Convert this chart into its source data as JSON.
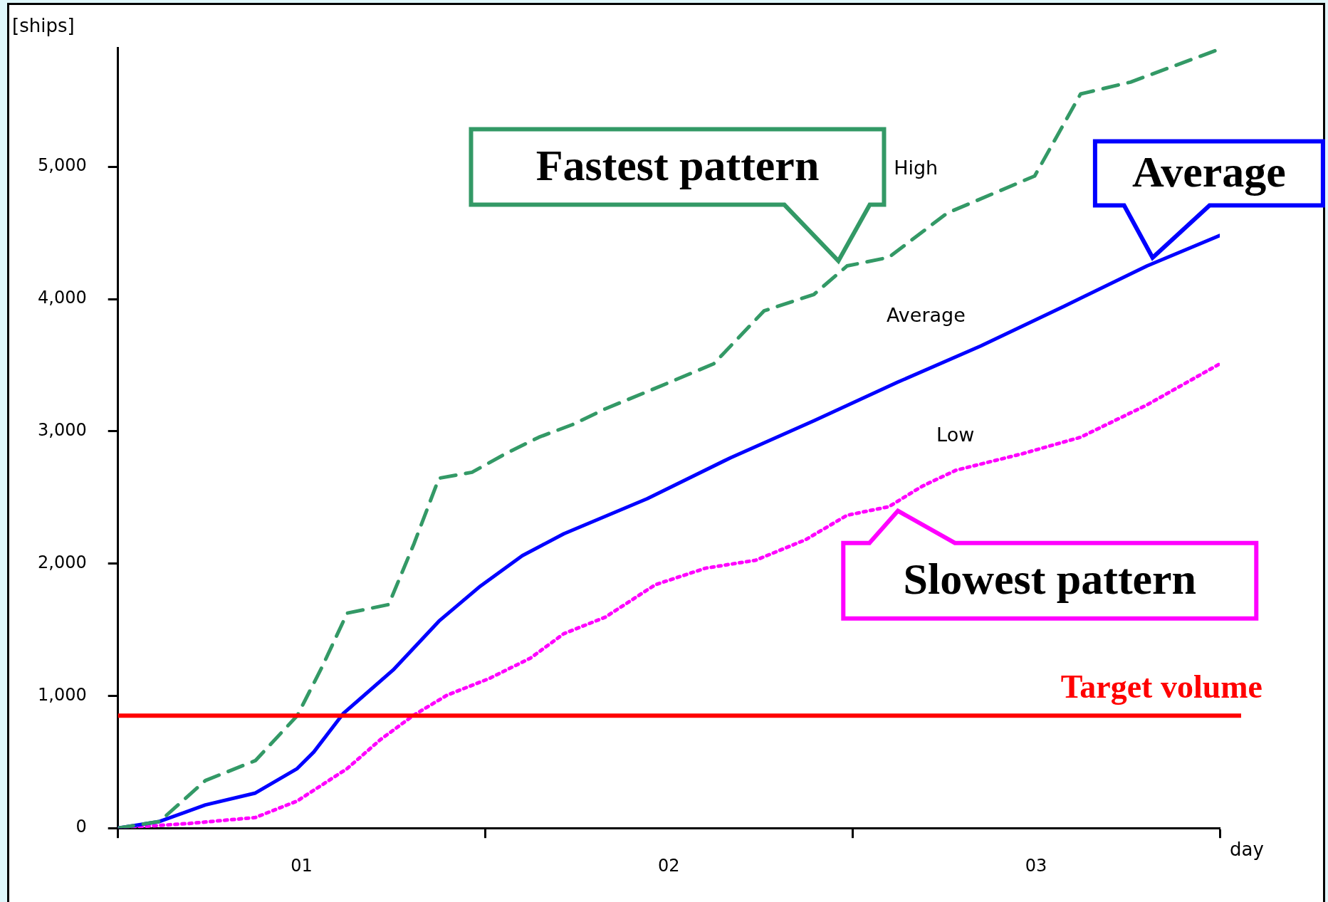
{
  "chart_data": {
    "type": "line",
    "xlabel": "day",
    "ylabel": "[ships]",
    "xlim": [
      0,
      3
    ],
    "ylim": [
      0,
      5900
    ],
    "xticks": [
      {
        "value": 0,
        "label": null
      },
      {
        "value": 0.5,
        "label": "01"
      },
      {
        "value": 1,
        "label": null
      },
      {
        "value": 1.5,
        "label": "02"
      },
      {
        "value": 2,
        "label": null
      },
      {
        "value": 2.5,
        "label": "03"
      },
      {
        "value": 3,
        "label": null
      }
    ],
    "yticks": [
      0,
      {
        "value": 1000,
        "label": "1,000"
      },
      {
        "value": 2000,
        "label": "2,000"
      },
      {
        "value": 3000,
        "label": "3,000"
      },
      {
        "value": 4000,
        "label": "4,000"
      },
      {
        "value": 5000,
        "label": "5,000"
      }
    ],
    "grid": false,
    "legend": false,
    "marker": "none",
    "series": [
      {
        "name": "High",
        "color": "#339966",
        "line_style": "dashed",
        "x": [
          0,
          0.113,
          0.238,
          0.374,
          0.488,
          0.556,
          0.624,
          0.737,
          0.806,
          0.874,
          0.964,
          1.055,
          1.146,
          1.237,
          1.327,
          1.463,
          1.622,
          1.759,
          1.895,
          1.985,
          2.099,
          2.258,
          2.394,
          2.496,
          2.621,
          2.757,
          3
        ],
        "values": [
          0,
          50,
          360,
          510,
          850,
          1220,
          1625,
          1690,
          2150,
          2645,
          2690,
          2830,
          2955,
          3050,
          3170,
          3325,
          3510,
          3910,
          4035,
          4250,
          4315,
          4650,
          4810,
          4930,
          5550,
          5640,
          5890
        ]
      },
      {
        "name": "Average",
        "color": "#0000ff",
        "line_style": "solid",
        "x": [
          0,
          0.113,
          0.238,
          0.374,
          0.488,
          0.533,
          0.613,
          0.749,
          0.874,
          0.987,
          1.101,
          1.214,
          1.441,
          1.668,
          1.895,
          2.122,
          2.349,
          2.576,
          2.802,
          3
        ],
        "values": [
          0,
          50,
          175,
          265,
          450,
          575,
          865,
          1195,
          1565,
          1830,
          2060,
          2225,
          2490,
          2800,
          3080,
          3370,
          3645,
          3945,
          4250,
          4480
        ]
      },
      {
        "name": "Low",
        "color": "#ff00ff",
        "line_style": "dotted",
        "x": [
          0,
          0.193,
          0.374,
          0.488,
          0.624,
          0.715,
          0.806,
          0.896,
          1.01,
          1.123,
          1.214,
          1.327,
          1.463,
          1.6,
          1.736,
          1.872,
          1.985,
          2.099,
          2.19,
          2.281,
          2.462,
          2.621,
          2.802,
          3
        ],
        "values": [
          0,
          35,
          80,
          205,
          450,
          670,
          855,
          1005,
          1130,
          1285,
          1470,
          1595,
          1840,
          1965,
          2025,
          2180,
          2365,
          2430,
          2585,
          2705,
          2830,
          2955,
          3200,
          3510
        ]
      }
    ],
    "ref_lines": [
      {
        "axis": "y",
        "value": 850,
        "label": "Target volume",
        "color": "#ff0000",
        "line_style": "solid"
      }
    ],
    "annotations": [
      {
        "text": "Fastest pattern",
        "x": 1.985,
        "y": 4250
      },
      {
        "text": "Average",
        "x": 2.802,
        "y": 4250
      },
      {
        "text": "Slowest pattern",
        "x": 2.099,
        "y": 2430
      }
    ]
  }
}
